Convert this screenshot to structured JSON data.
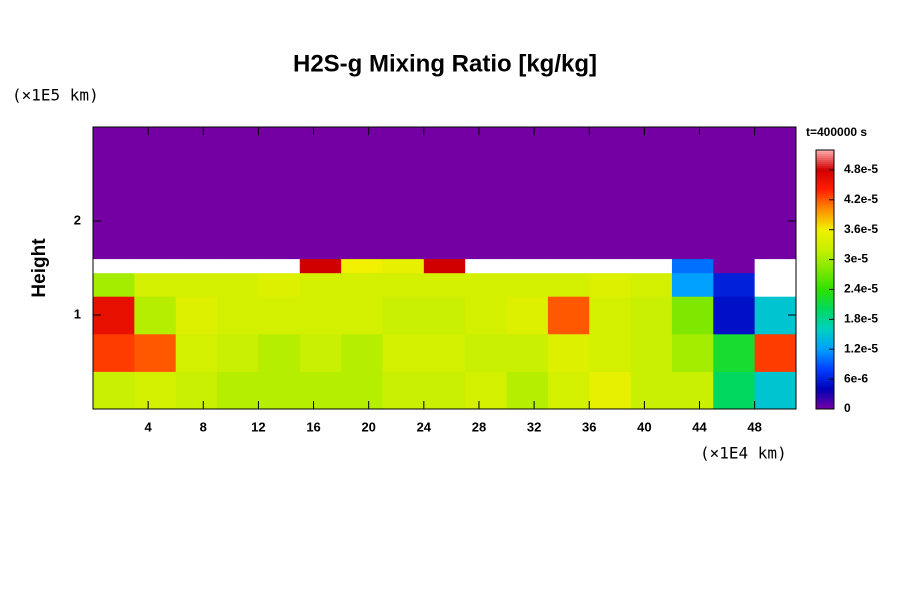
{
  "chart_data": {
    "type": "heatmap",
    "title": "H2S-g Mixing Ratio [kg/kg]",
    "y_label": "Height",
    "y_unit": "(×1E5 km)",
    "x_unit": "(×1E4 km)",
    "time_label": "t=400000 s",
    "xlim": [
      0,
      51
    ],
    "ylim": [
      0,
      3
    ],
    "xticks": [
      4,
      8,
      12,
      16,
      20,
      24,
      28,
      32,
      36,
      40,
      44,
      48
    ],
    "yticks": [
      1,
      2
    ],
    "x_edges": [
      0,
      3,
      6,
      9,
      12,
      15,
      18,
      21,
      24,
      27,
      30,
      33,
      36,
      39,
      42,
      45,
      48,
      51
    ],
    "y_edges": [
      0,
      0.4,
      0.8,
      1.2,
      1.45,
      1.6,
      3
    ],
    "z": [
      [
        3.2e-05,
        3.3e-05,
        3.2e-05,
        3.1e-05,
        3.1e-05,
        3.1e-05,
        3.1e-05,
        3.2e-05,
        3.2e-05,
        3.3e-05,
        3.1e-05,
        3.3e-05,
        3.5e-05,
        3.2e-05,
        3.2e-05,
        2e-05,
        1.5e-05
      ],
      [
        4.3e-05,
        4.2e-05,
        3.3e-05,
        3.2e-05,
        3.1e-05,
        3.2e-05,
        3.1e-05,
        3.3e-05,
        3.3e-05,
        3.2e-05,
        3.2e-05,
        3.4e-05,
        3.3e-05,
        3.2e-05,
        3e-05,
        2.2e-05,
        4.3e-05
      ],
      [
        4.6e-05,
        3.1e-05,
        3.4e-05,
        3.3e-05,
        3.3e-05,
        3.3e-05,
        3.3e-05,
        3.2e-05,
        3.2e-05,
        3.3e-05,
        3.4e-05,
        4.2e-05,
        3.3e-05,
        3.2e-05,
        2.8e-05,
        5e-06,
        1.5e-05
      ],
      [
        3e-05,
        3.3e-05,
        3.3e-05,
        3.3e-05,
        3.4e-05,
        3.3e-05,
        3.3e-05,
        3.3e-05,
        3.3e-05,
        3.3e-05,
        3.3e-05,
        3.3e-05,
        3.4e-05,
        3.3e-05,
        1.2e-05,
        6e-06,
        5.5e-05
      ],
      [
        5.5e-05,
        5.5e-05,
        5.5e-05,
        5.5e-05,
        5.5e-05,
        4.8e-05,
        3.6e-05,
        3.5e-05,
        4.8e-05,
        5.5e-05,
        5.5e-05,
        5.5e-05,
        5.5e-05,
        5.5e-05,
        1e-05,
        0,
        5.5e-05
      ],
      [
        0,
        0,
        0,
        0,
        0,
        0,
        0,
        0,
        0,
        0,
        0,
        0,
        0,
        0,
        0,
        0,
        0
      ]
    ],
    "zlim": [
      0,
      5.2e-05
    ],
    "zticks": [
      0,
      {
        "value": 6e-06,
        "label": "6e-6"
      },
      {
        "value": 1.2e-05,
        "label": "1.2e-5"
      },
      {
        "value": 1.8e-05,
        "label": "1.8e-5"
      },
      {
        "value": 2.4e-05,
        "label": "2.4e-5"
      },
      {
        "value": 3e-05,
        "label": "3e-5"
      },
      {
        "value": 3.6e-05,
        "label": "3.6e-5"
      },
      {
        "value": 4.2e-05,
        "label": "4.2e-5"
      },
      {
        "value": 4.8e-05,
        "label": "4.8e-5"
      }
    ],
    "colormap": [
      "#7400a4",
      "#0000b4",
      "#0040ff",
      "#00a0ff",
      "#00d0c0",
      "#00d860",
      "#30e000",
      "#80e800",
      "#c8f000",
      "#f0f000",
      "#ff9000",
      "#ff2000",
      "#d00000",
      "#ffb0b0"
    ],
    "over_color": "#ffffff"
  }
}
